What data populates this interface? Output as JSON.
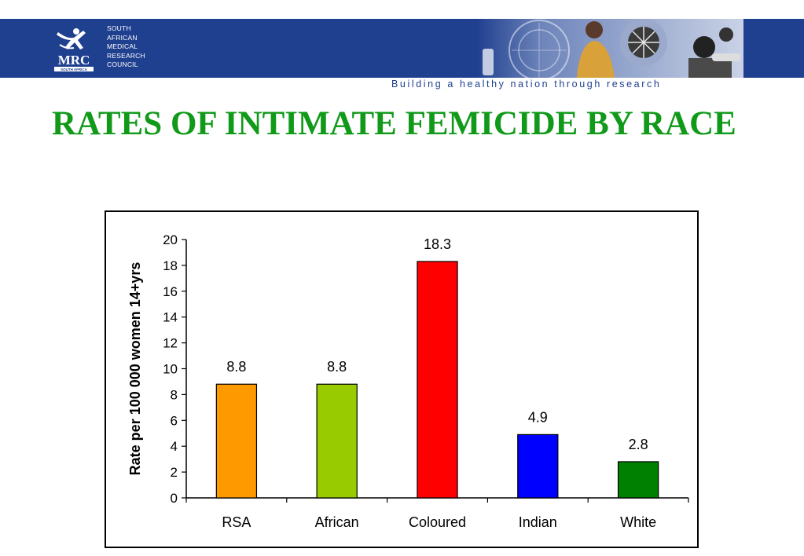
{
  "header": {
    "logo_text": "MRC",
    "logo_subtext": "SOUTH AFRICA",
    "org_name_lines": [
      "SOUTH",
      "AFRICAN",
      "MEDICAL",
      "RESEARCH",
      "COUNCIL"
    ],
    "tagline": "Building a healthy nation through research",
    "banner_color": "#1f3f8f"
  },
  "slide": {
    "title": "RATES OF INTIMATE FEMICIDE BY RACE",
    "title_color": "#119a1a"
  },
  "chart_data": {
    "type": "bar",
    "title": "",
    "xlabel": "",
    "ylabel": "Rate per 100 000 women 14+yrs",
    "categories": [
      "RSA",
      "African",
      "Coloured",
      "Indian",
      "White"
    ],
    "values": [
      8.8,
      8.8,
      18.3,
      4.9,
      2.8
    ],
    "value_labels": [
      "8.8",
      "8.8",
      "18.3",
      "4.9",
      "2.8"
    ],
    "colors": [
      "#ff9900",
      "#99cc00",
      "#ff0000",
      "#0000ff",
      "#008000"
    ],
    "ylim": [
      0,
      20
    ],
    "yticks": [
      0,
      2,
      4,
      6,
      8,
      10,
      12,
      14,
      16,
      18,
      20
    ],
    "grid": false,
    "legend": "none"
  }
}
